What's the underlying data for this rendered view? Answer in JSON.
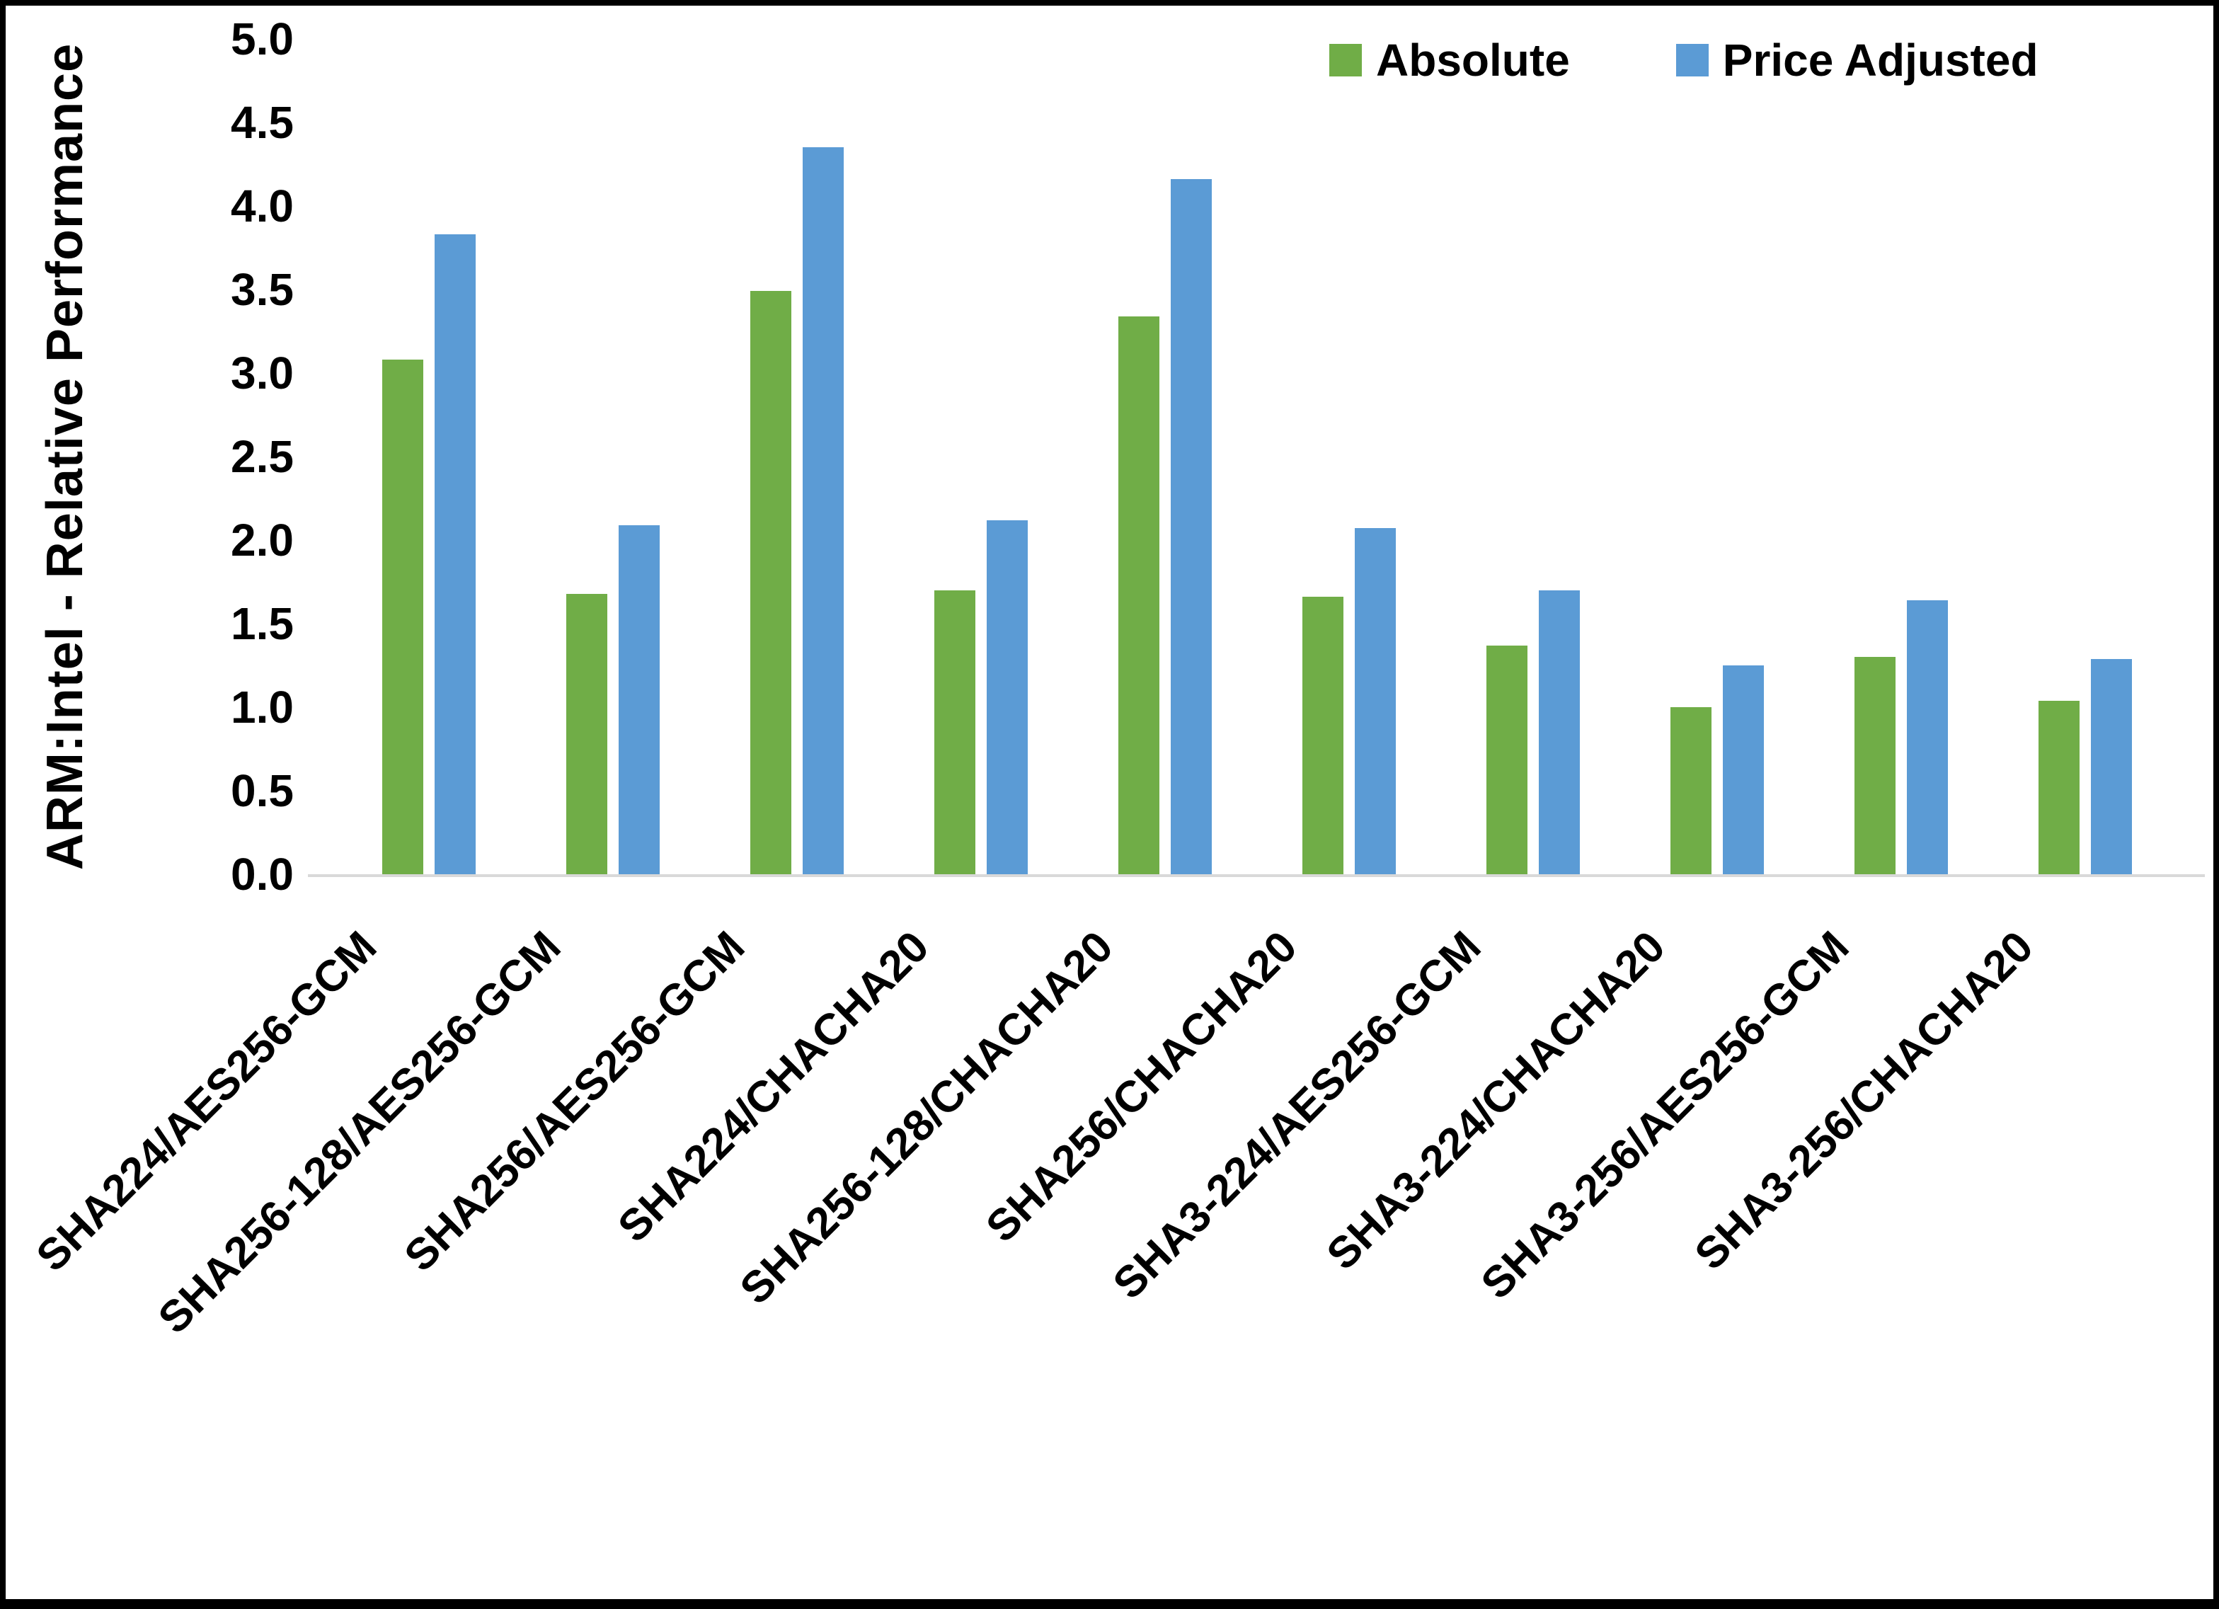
{
  "chart_data": {
    "type": "bar",
    "title": "",
    "y_axis_title": "ARM:Intel - Relative Performance",
    "categories": [
      "SHA224/AES256-GCM",
      "SHA256-128/AES256-GCM",
      "SHA256/AES256-GCM",
      "SHA224/CHACHA20",
      "SHA256-128/CHACHA20",
      "SHA256/CHACHA20",
      "SHA3-224/AES256-GCM",
      "SHA3-224/CHACHA20",
      "SHA3-256/AES256-GCM",
      "SHA3-256/CHACHA20"
    ],
    "series": [
      {
        "name": "Absolute",
        "color": "#70AD47",
        "values": [
          3.08,
          1.68,
          3.49,
          1.7,
          3.34,
          1.66,
          1.37,
          1.0,
          1.3,
          1.04
        ]
      },
      {
        "name": "Price Adjusted",
        "color": "#5B9BD5",
        "values": [
          3.83,
          2.09,
          4.35,
          2.12,
          4.16,
          2.07,
          1.7,
          1.25,
          1.64,
          1.29
        ]
      }
    ],
    "y_ticks": [
      "5.0",
      "4.5",
      "4.0",
      "3.5",
      "3.0",
      "2.5",
      "2.0",
      "1.5",
      "1.0",
      "0.5",
      "0.0"
    ],
    "ylim": [
      0.0,
      5.0
    ],
    "y_tick_step": 0.5,
    "grid": "baseline-only",
    "baseline_color": "#d9d9d9",
    "legend_position": "top-right",
    "x_label_rotation_deg": 45
  },
  "legend": {
    "items": [
      {
        "label": "Absolute",
        "color": "#70AD47"
      },
      {
        "label": "Price Adjusted",
        "color": "#5B9BD5"
      }
    ]
  }
}
